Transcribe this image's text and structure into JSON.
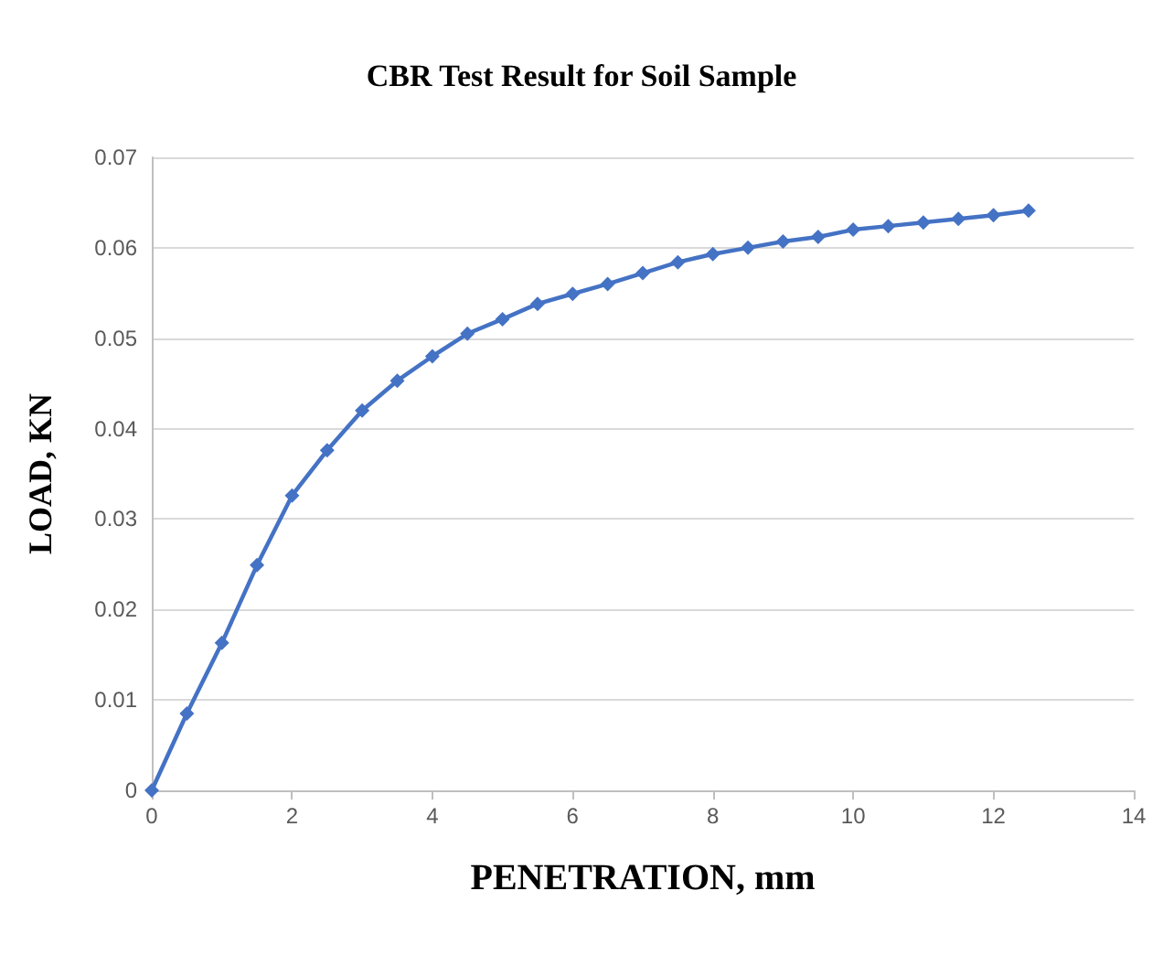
{
  "chart_data": {
    "type": "line",
    "title": "CBR Test Result for Soil Sample",
    "xlabel": "PENETRATION, mm",
    "ylabel": "LOAD, KN",
    "x": [
      0,
      0.5,
      1,
      1.5,
      2,
      2.5,
      3,
      3.5,
      4,
      4.5,
      5,
      5.5,
      6,
      6.5,
      7,
      7.5,
      8,
      8.5,
      9,
      9.5,
      10,
      10.5,
      11,
      11.5,
      12,
      12.5
    ],
    "series": [
      {
        "color": "#4472c4",
        "values": [
          0,
          0.0085,
          0.0163,
          0.0249,
          0.0326,
          0.0376,
          0.042,
          0.0453,
          0.048,
          0.0505,
          0.0521,
          0.0538,
          0.0549,
          0.056,
          0.0572,
          0.0584,
          0.0593,
          0.06,
          0.0607,
          0.0612,
          0.062,
          0.0624,
          0.0628,
          0.0632,
          0.0636,
          0.0641
        ]
      }
    ],
    "xlim": [
      0,
      14
    ],
    "xticks": [
      0,
      2,
      4,
      6,
      8,
      10,
      12,
      14
    ],
    "ylim": [
      0,
      0.07
    ],
    "yticks": [
      0,
      0.01,
      0.02,
      0.03,
      0.04,
      0.05,
      0.06,
      0.07
    ],
    "grid": "y",
    "marker": "diamond",
    "line_style": "solid"
  }
}
